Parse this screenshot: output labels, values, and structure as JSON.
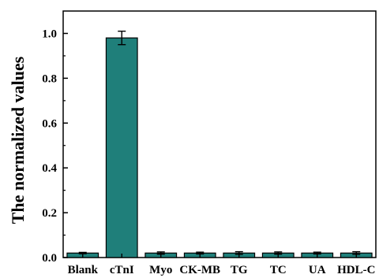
{
  "chart_data": {
    "type": "bar",
    "categories": [
      "Blank",
      "cTnI",
      "Myo",
      "CK-MB",
      "TG",
      "TC",
      "UA",
      "HDL-C"
    ],
    "values": [
      0.02,
      0.98,
      0.02,
      0.02,
      0.02,
      0.02,
      0.02,
      0.02
    ],
    "errors": [
      0.003,
      0.03,
      0.005,
      0.004,
      0.006,
      0.005,
      0.004,
      0.006
    ],
    "title": "",
    "xlabel": "",
    "ylabel": "The normalized values",
    "ylim": [
      0,
      1.1
    ],
    "yticks": [
      0.0,
      0.2,
      0.4,
      0.6,
      0.8,
      1.0
    ],
    "ytick_labels": [
      "0.0",
      "0.2",
      "0.4",
      "0.6",
      "0.8",
      "1.0"
    ],
    "bar_color": "#1f7f7a",
    "grid": false,
    "legend": "none"
  }
}
